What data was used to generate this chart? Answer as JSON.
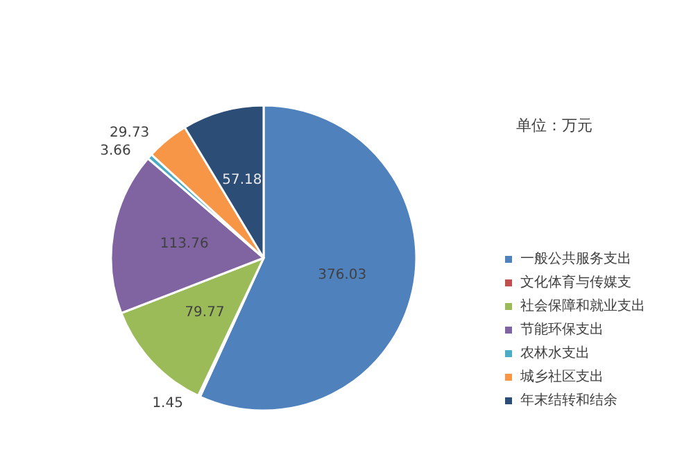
{
  "chart_data": {
    "type": "pie",
    "categories": [
      "一般公共服务支出",
      "文化体育与传媒支",
      "社会保障和就业支出",
      "节能环保支出",
      "农林水支出",
      "城乡社区支出",
      "年末结转和结余"
    ],
    "values": [
      376.03,
      1.45,
      79.77,
      113.76,
      3.66,
      29.73,
      57.18
    ],
    "colors": [
      "#4f81bd",
      "#c0504d",
      "#9bbb59",
      "#8064a2",
      "#4bacc6",
      "#f79646",
      "#2c4d75"
    ],
    "annotations": [
      "单位：万元"
    ],
    "data_labels": true,
    "legend": "right"
  }
}
